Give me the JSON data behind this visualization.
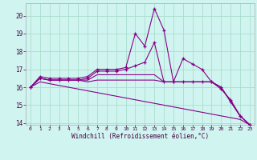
{
  "xlabel": "Windchill (Refroidissement éolien,°C)",
  "background_color": "#d0f5f0",
  "line_color": "#880088",
  "grid_color": "#aaddcc",
  "x_values": [
    0,
    1,
    2,
    3,
    4,
    5,
    6,
    7,
    8,
    9,
    10,
    11,
    12,
    13,
    14,
    15,
    16,
    17,
    18,
    19,
    20,
    21,
    22,
    23
  ],
  "series": [
    [
      16.0,
      16.6,
      16.5,
      16.5,
      16.5,
      16.5,
      16.6,
      17.0,
      17.0,
      17.0,
      17.1,
      19.0,
      18.3,
      20.4,
      19.2,
      16.3,
      17.6,
      17.3,
      17.0,
      16.3,
      15.9,
      15.3,
      14.4,
      13.9
    ],
    [
      16.0,
      16.5,
      16.4,
      16.4,
      16.4,
      16.4,
      16.5,
      16.9,
      16.9,
      16.9,
      17.0,
      17.2,
      17.4,
      18.5,
      16.3,
      16.3,
      16.3,
      16.3,
      16.3,
      16.3,
      16.0,
      15.2,
      14.4,
      13.9
    ],
    [
      16.0,
      16.5,
      16.4,
      16.4,
      16.4,
      16.4,
      16.4,
      16.7,
      16.7,
      16.7,
      16.7,
      16.7,
      16.7,
      16.7,
      16.3,
      16.3,
      16.3,
      16.3,
      16.3,
      16.3,
      16.0,
      15.2,
      14.4,
      13.9
    ],
    [
      16.0,
      16.5,
      16.4,
      16.4,
      16.4,
      16.4,
      16.3,
      16.4,
      16.4,
      16.4,
      16.4,
      16.4,
      16.4,
      16.4,
      16.3,
      16.3,
      16.3,
      16.3,
      16.3,
      16.3,
      16.0,
      15.2,
      14.4,
      13.9
    ],
    [
      16.0,
      16.3,
      16.2,
      16.1,
      16.0,
      15.9,
      15.8,
      15.7,
      15.6,
      15.5,
      15.4,
      15.3,
      15.2,
      15.1,
      15.0,
      14.9,
      14.8,
      14.7,
      14.6,
      14.5,
      14.4,
      14.3,
      14.2,
      13.9
    ]
  ],
  "markers": [
    true,
    true,
    false,
    false,
    false
  ],
  "ylim": [
    13.9,
    20.7
  ],
  "xlim": [
    -0.5,
    23.5
  ],
  "yticks": [
    14,
    15,
    16,
    17,
    18,
    19,
    20
  ],
  "xticks": [
    0,
    1,
    2,
    3,
    4,
    5,
    6,
    7,
    8,
    9,
    10,
    11,
    12,
    13,
    14,
    15,
    16,
    17,
    18,
    19,
    20,
    21,
    22,
    23
  ]
}
